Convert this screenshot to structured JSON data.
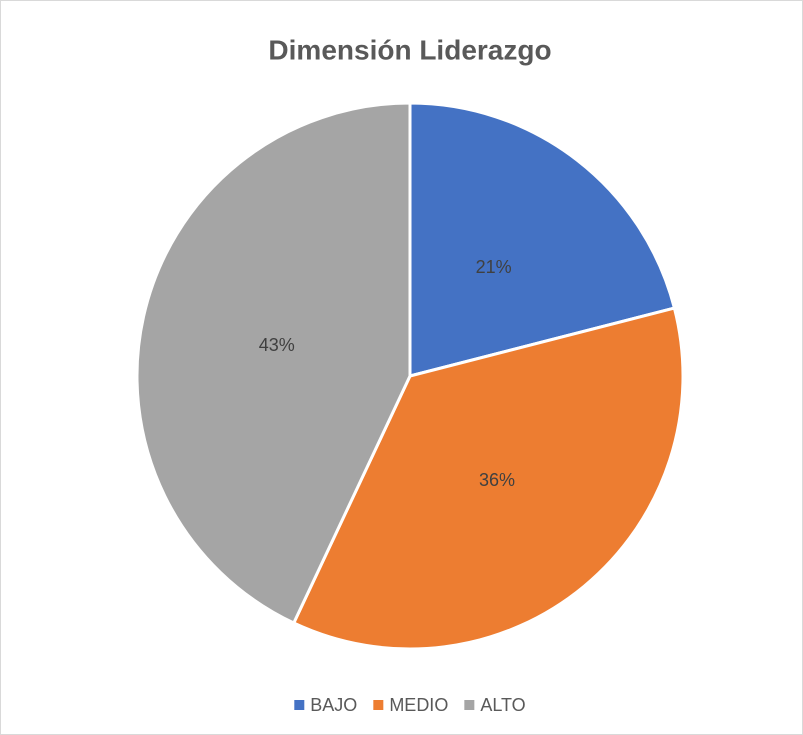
{
  "chart_data": {
    "type": "pie",
    "title": "Dimensión Liderazgo",
    "categories": [
      "BAJO",
      "MEDIO",
      "ALTO"
    ],
    "values": [
      21,
      36,
      43
    ],
    "value_labels": [
      "21%",
      "36%",
      "43%"
    ],
    "colors": [
      "#4472c4",
      "#ed7d31",
      "#a5a5a5"
    ],
    "legend": "bottom"
  }
}
